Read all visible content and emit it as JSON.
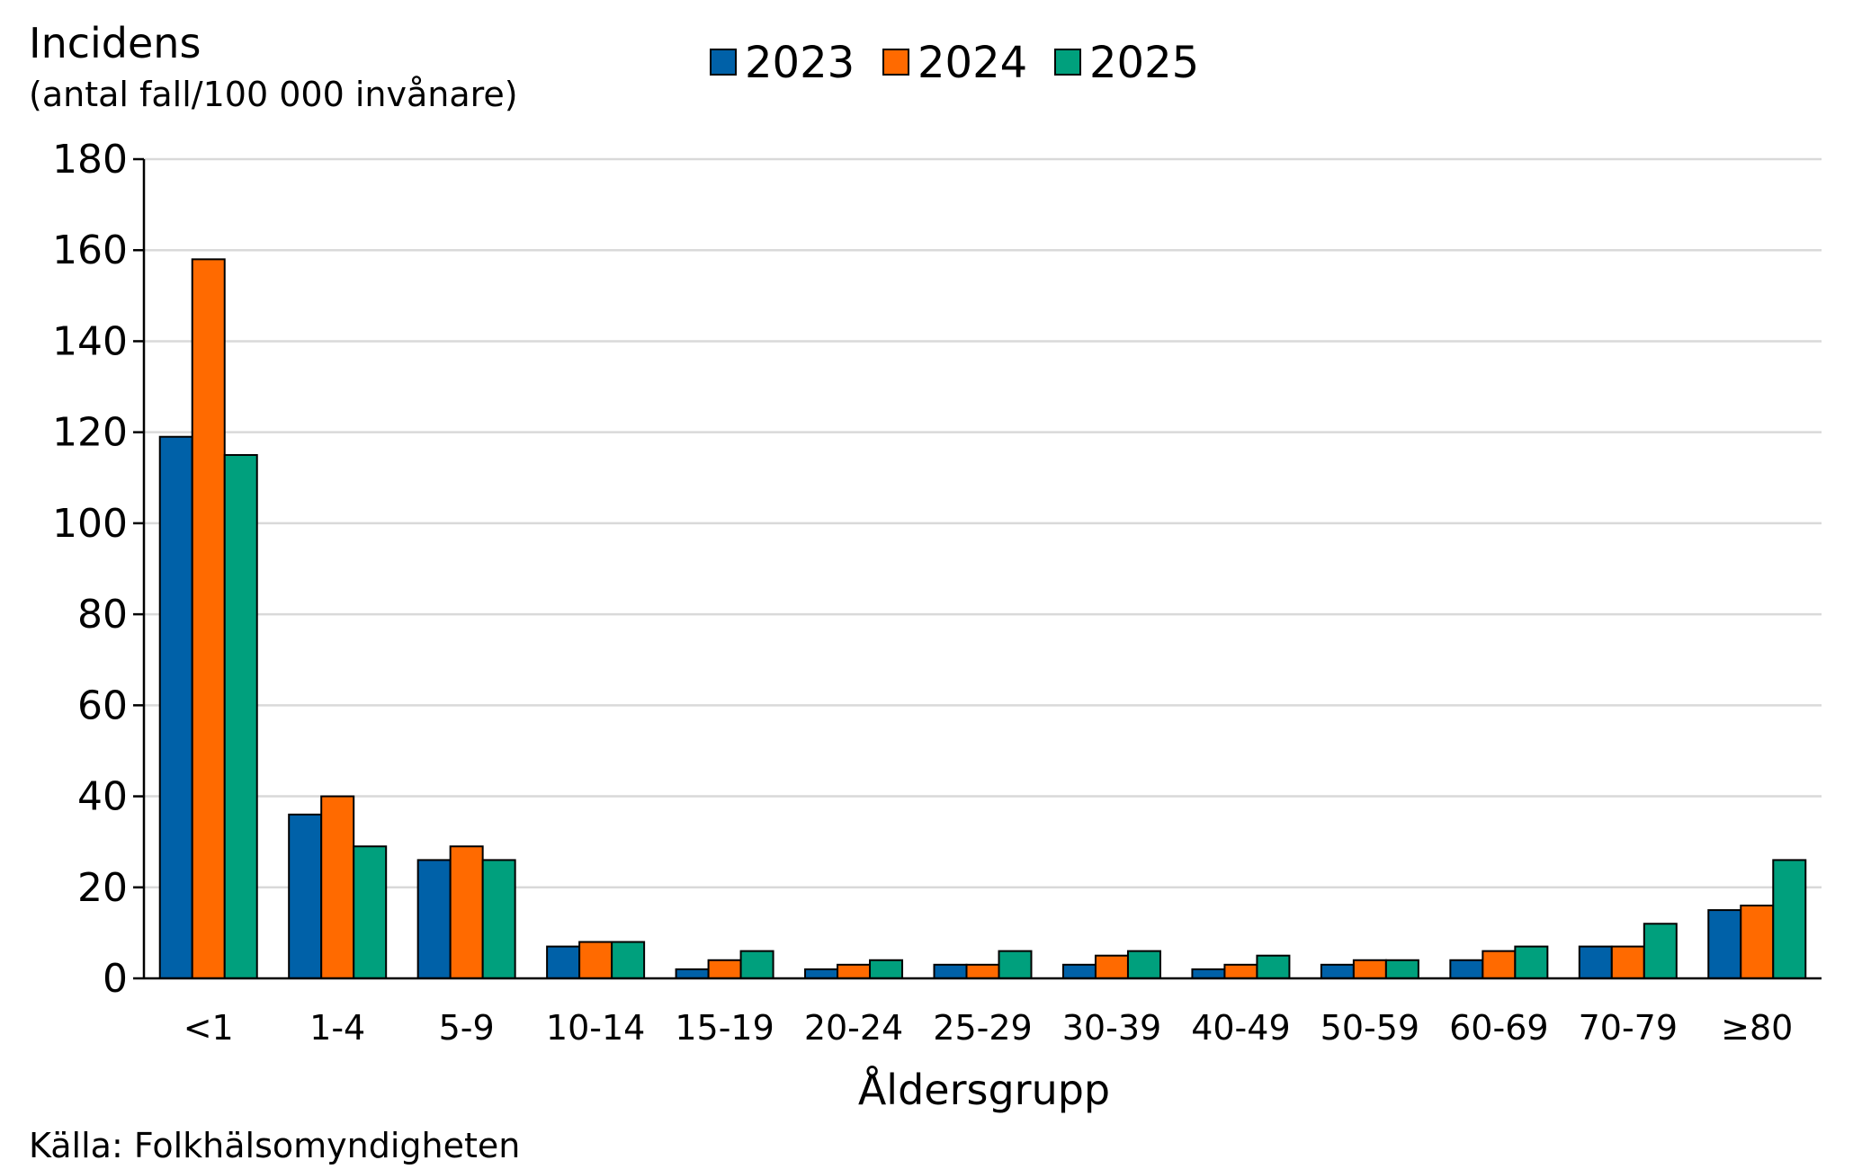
{
  "chart_data": {
    "type": "bar",
    "ylabel_line1": "Incidens",
    "ylabel_line2": "(antal fall/100 000 invånare)",
    "xlabel": "Åldersgrupp",
    "source": "Källa: Folkhälsomyndigheten",
    "ylim": [
      0,
      180
    ],
    "yticks": [
      0,
      20,
      40,
      60,
      80,
      100,
      120,
      140,
      160,
      180
    ],
    "grid": true,
    "legend_position": "top-center",
    "categories": [
      "<1",
      "1-4",
      "5-9",
      "10-14",
      "15-19",
      "20-24",
      "25-29",
      "30-39",
      "40-49",
      "50-59",
      "60-69",
      "70-79",
      "≥80"
    ],
    "series": [
      {
        "name": "2023",
        "color": "#0061a8",
        "values": [
          119,
          36,
          26,
          7,
          2,
          2,
          3,
          3,
          2,
          3,
          4,
          7,
          15
        ]
      },
      {
        "name": "2024",
        "color": "#ff6a00",
        "values": [
          158,
          40,
          29,
          8,
          4,
          3,
          3,
          5,
          3,
          4,
          6,
          7,
          16
        ]
      },
      {
        "name": "2025",
        "color": "#00a07d",
        "values": [
          115,
          29,
          26,
          8,
          6,
          4,
          6,
          6,
          5,
          4,
          7,
          12,
          26
        ]
      }
    ]
  }
}
